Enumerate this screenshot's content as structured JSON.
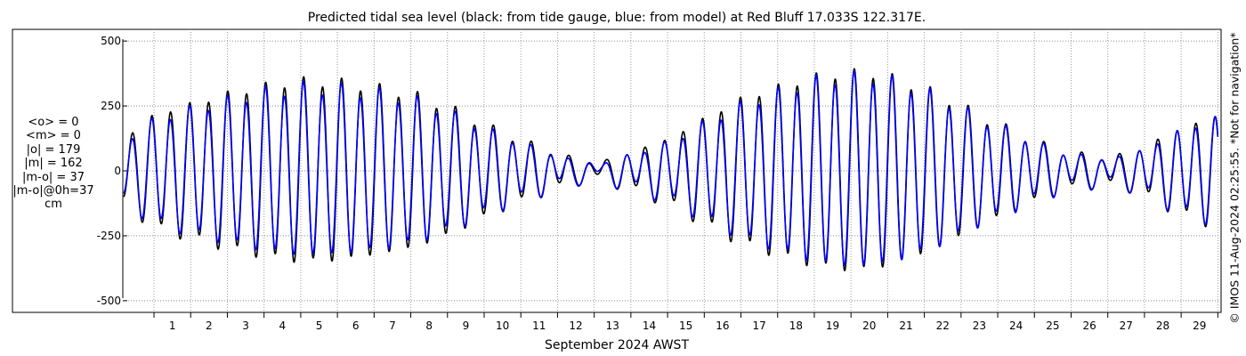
{
  "chart_data": {
    "type": "line",
    "title": "Predicted tidal sea level (black: from tide gauge, blue: from model) at Red Bluff 17.033S 122.317E.",
    "xlabel": "September 2024 AWST",
    "ylabel": "cm",
    "x_unit": "day of September 2024",
    "xlim": [
      0.15,
      30.04
    ],
    "ylim": [
      -545,
      545
    ],
    "grid": true,
    "x_ticks": [
      1,
      2,
      3,
      4,
      5,
      6,
      7,
      8,
      9,
      10,
      11,
      12,
      13,
      14,
      15,
      16,
      17,
      18,
      19,
      20,
      21,
      22,
      23,
      24,
      25,
      26,
      27,
      28,
      29
    ],
    "x_tick_labels": [
      "1",
      "2",
      "3",
      "4",
      "5",
      "6",
      "7",
      "8",
      "9",
      "10",
      "11",
      "12",
      "13",
      "14",
      "15",
      "16",
      "17",
      "18",
      "19",
      "20",
      "21",
      "22",
      "23",
      "24",
      "25",
      "26",
      "27",
      "28",
      "29"
    ],
    "y_ticks": [
      500,
      250,
      0,
      -250,
      -500
    ],
    "y_tick_labels": [
      "500",
      "250",
      "0",
      "-250",
      "-500"
    ],
    "series": [
      {
        "name": "from tide gauge",
        "color": "#000000",
        "x_start": 0.17,
        "x_end": 30.0,
        "semi_diurnal_period_days": 0.5176,
        "diurnal_period_days": 1.0,
        "envelope_day": [
          0.17,
          1.0,
          2.0,
          3.0,
          4.0,
          5.0,
          6.0,
          7.0,
          8.0,
          9.0,
          10.0,
          11.0,
          11.8,
          12.5,
          13.2,
          14.0,
          15.0,
          16.0,
          17.0,
          18.0,
          19.0,
          19.8,
          20.6,
          21.5,
          22.5,
          23.5,
          24.5,
          25.3,
          26.0,
          26.8,
          27.5,
          28.2,
          29.0,
          30.0
        ],
        "envelope_cm": [
          120,
          215,
          255,
          295,
          325,
          345,
          340,
          320,
          295,
          245,
          175,
          115,
          75,
          40,
          30,
          70,
          120,
          200,
          275,
          320,
          360,
          375,
          375,
          340,
          285,
          210,
          145,
          95,
          65,
          50,
          60,
          105,
          165,
          210
        ],
        "diurnal_amp_cm": 20
      },
      {
        "name": "from model",
        "color": "#0000ff",
        "x_start": 0.17,
        "x_end": 30.0,
        "semi_diurnal_period_days": 0.5176,
        "diurnal_period_days": 1.0,
        "envelope_day": [
          0.17,
          1.0,
          2.0,
          3.0,
          4.0,
          5.0,
          6.0,
          7.0,
          8.0,
          9.0,
          10.0,
          11.0,
          11.8,
          12.5,
          13.2,
          14.0,
          15.0,
          16.0,
          17.0,
          18.0,
          19.0,
          19.8,
          20.6,
          21.5,
          22.5,
          23.5,
          24.5,
          25.3,
          26.0,
          26.8,
          27.5,
          28.2,
          29.0,
          30.0
        ],
        "envelope_cm": [
          110,
          195,
          235,
          270,
          300,
          320,
          315,
          300,
          275,
          225,
          160,
          105,
          65,
          35,
          25,
          60,
          105,
          180,
          250,
          300,
          345,
          360,
          360,
          330,
          275,
          200,
          140,
          90,
          60,
          45,
          55,
          95,
          155,
          200
        ],
        "diurnal_amp_cm": 25
      }
    ]
  },
  "stats": {
    "mean_obs": "<o> = 0",
    "mean_model": "<m> = 0",
    "abs_obs": "|o| = 179",
    "abs_model": "|m| = 162",
    "abs_diff": "|m-o| = 37",
    "abs_diff_0h": "|m-o|@0h=37",
    "unit": "cm"
  },
  "credit": "© IMOS 11-Aug-2024 02:25:55. *Not for navigation*"
}
